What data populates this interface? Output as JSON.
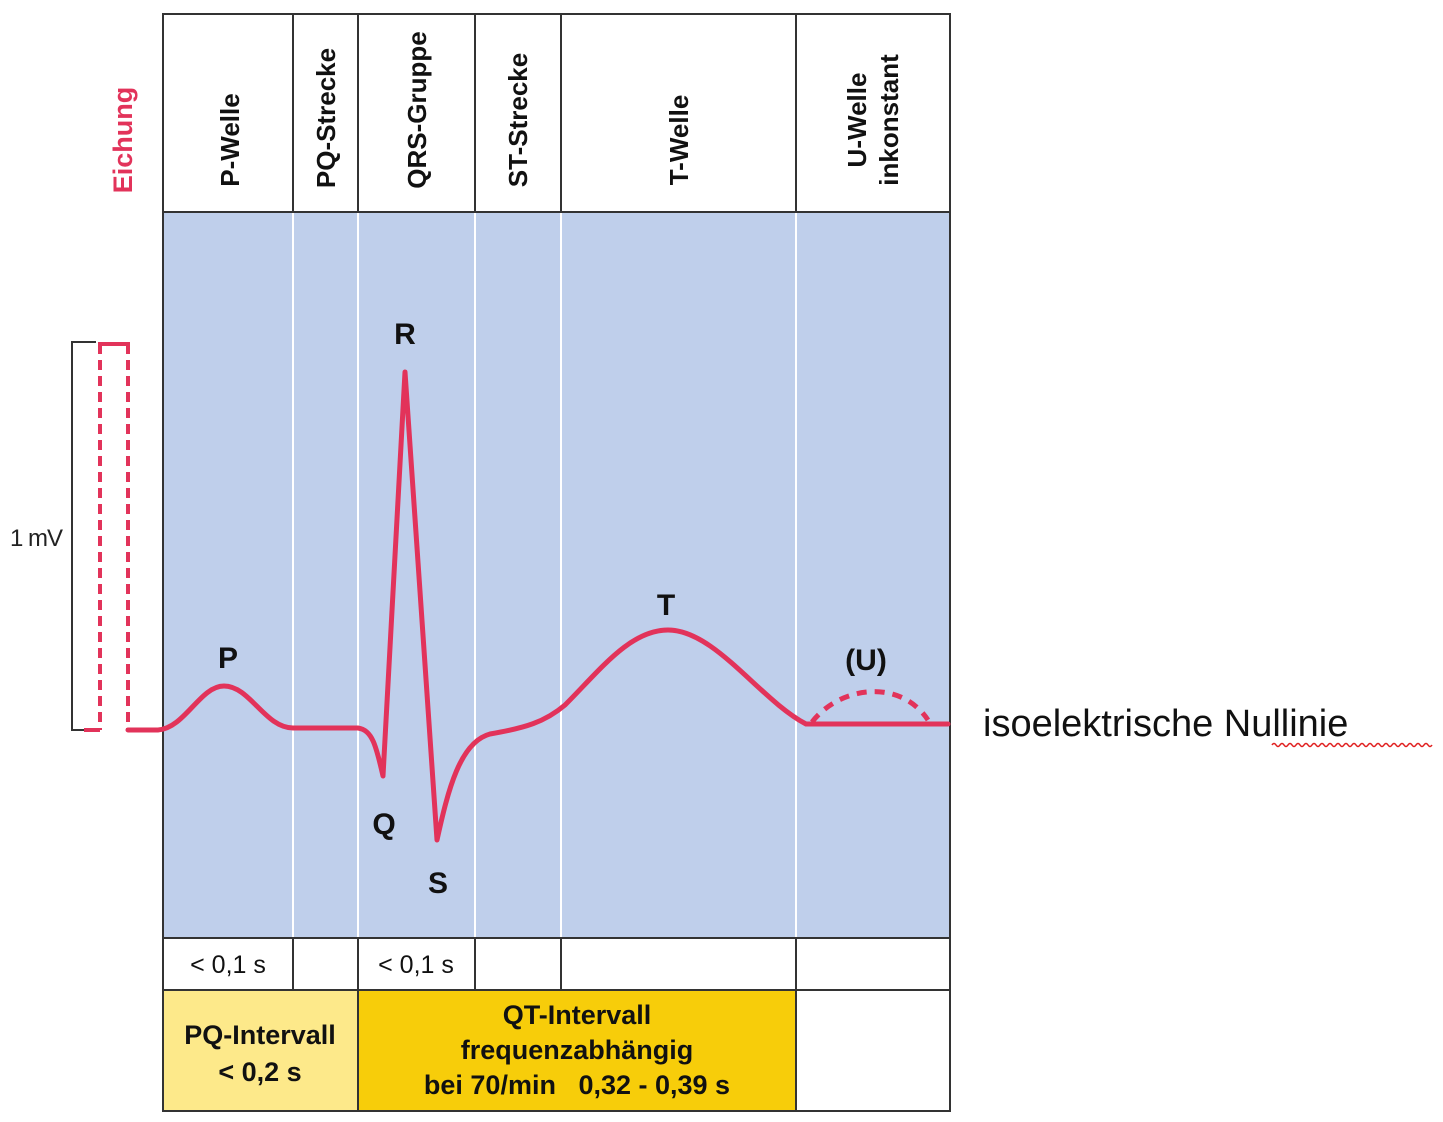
{
  "calibration_label": "Eichung",
  "scale_label": "1 mV",
  "segments": [
    {
      "label": "P-Welle"
    },
    {
      "label": "PQ-Strecke"
    },
    {
      "label": "QRS-Gruppe"
    },
    {
      "label": "ST-Strecke"
    },
    {
      "label": "T-Welle"
    },
    {
      "label": "U-Welle",
      "label2": "inkonstant"
    }
  ],
  "wave_labels": {
    "p": "P",
    "q": "Q",
    "r": "R",
    "s": "S",
    "t": "T",
    "u": "(U)"
  },
  "durations": {
    "p_wave": "< 0,1 s",
    "qrs": "< 0,1 s"
  },
  "intervals": {
    "pq": {
      "line1": "PQ-Intervall",
      "line2": "< 0,2 s"
    },
    "qt": {
      "line1": "QT-Intervall",
      "line2": "frequenzabhängig",
      "line3": "bei 70/min   0,32 - 0,39 s"
    }
  },
  "baseline_label": "isoelektrische Nullinie",
  "colors": {
    "trace": "#e2335a",
    "panel": "#bfcfeb",
    "pq_box": "#fde98a",
    "qt_box": "#f7cd0a",
    "border": "#333333"
  }
}
